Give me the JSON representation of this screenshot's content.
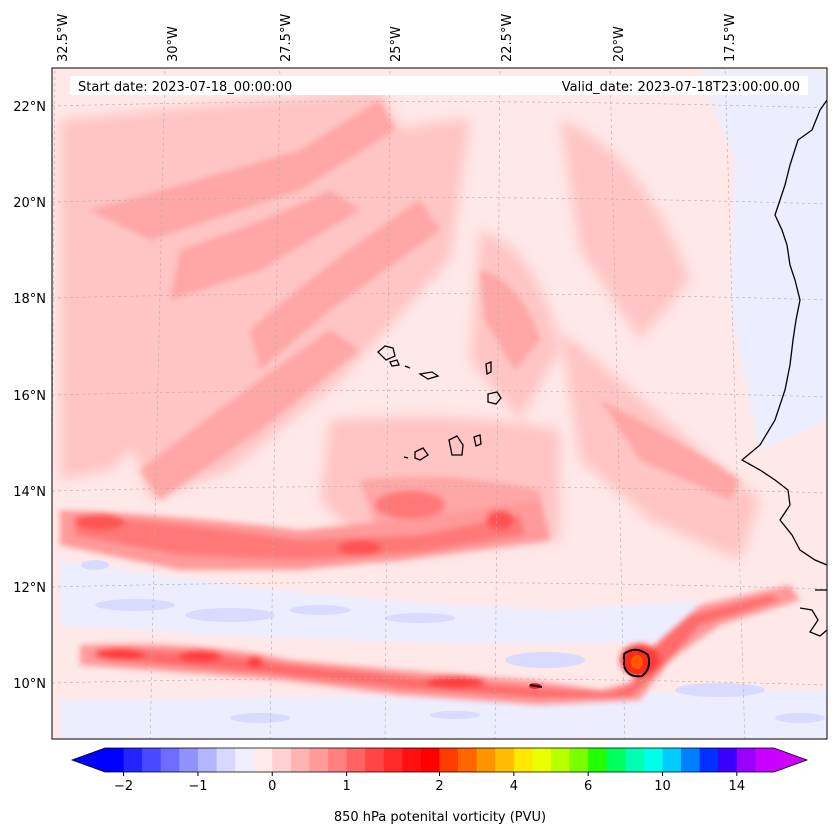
{
  "header": {
    "start_date": "Start date: 2023-07-18_00:00:00",
    "valid_date": "Valid_date: 2023-07-18T23:00:00.00"
  },
  "lon_labels": [
    "32.5°W",
    "30°W",
    "27.5°W",
    "25°W",
    "22.5°W",
    "20°W",
    "17.5°W"
  ],
  "lat_labels": [
    "22°N",
    "20°N",
    "18°N",
    "16°N",
    "14°N",
    "12°N",
    "10°N"
  ],
  "colorbar": {
    "title": "850 hPa potenital vorticity (PVU)",
    "tick_labels": [
      "−2",
      "−1",
      "0",
      "1",
      "2",
      "4",
      "6",
      "10",
      "14"
    ],
    "colors": [
      "#0000ff",
      "#2424ff",
      "#4848ff",
      "#6c6cff",
      "#9090ff",
      "#b4b4ff",
      "#d8d8ff",
      "#eeeeff",
      "#ffeaea",
      "#ffd0d0",
      "#ffb4b4",
      "#ff9a9a",
      "#ff7e7e",
      "#ff6262",
      "#ff4646",
      "#ff2a2a",
      "#ff1010",
      "#ff0000",
      "#ff3c00",
      "#ff6600",
      "#ff9400",
      "#ffbc00",
      "#ffe800",
      "#eaff00",
      "#baff00",
      "#7aff00",
      "#22ff00",
      "#00ff60",
      "#00ffb0",
      "#00ffe8",
      "#00ccff",
      "#0080ff",
      "#0030ff",
      "#3a00ff",
      "#9a00ff",
      "#c800ff"
    ],
    "under_color": "#0000ff",
    "over_color": "#cc00ff"
  },
  "map": {
    "region": "Eastern tropical Atlantic off West Africa (Cape Verde)",
    "lon_range": [
      "33°W",
      "15.5°W"
    ],
    "lat_range": [
      "9°N",
      "23°N"
    ]
  }
}
